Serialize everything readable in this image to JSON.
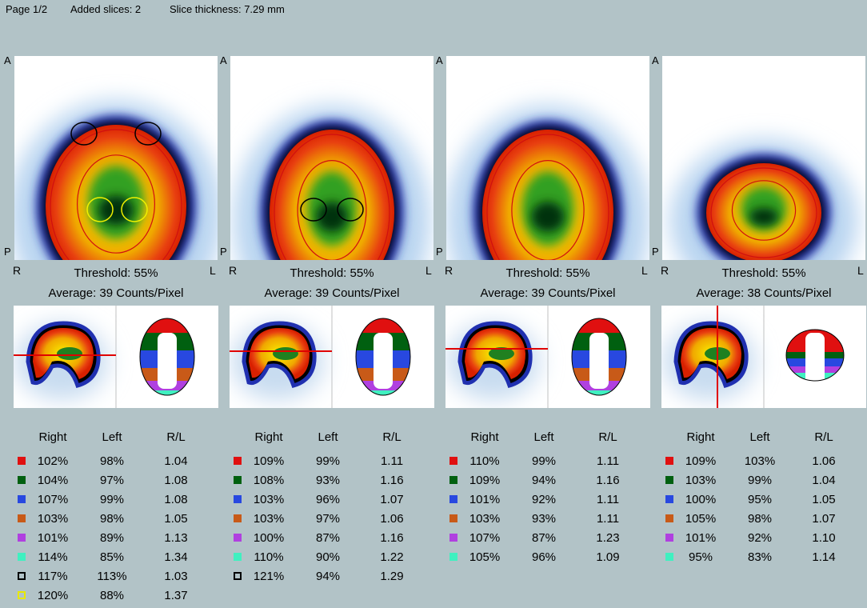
{
  "header": {
    "page": "Page 1/2",
    "added_slices": "Added slices: 2",
    "slice_thickness": "Slice thickness: 7.29 mm"
  },
  "orientation": {
    "anterior": "A",
    "posterior": "P",
    "right": "R",
    "left": "L"
  },
  "columns": [
    "Right",
    "Left",
    "R/L"
  ],
  "panels": [
    {
      "threshold": "Threshold: 55%",
      "average": "Average: 39 Counts/Pixel",
      "rows": [
        {
          "swatch": {
            "color": "#e01010",
            "filled": true
          },
          "cells": [
            "102%",
            "98%",
            "1.04"
          ]
        },
        {
          "swatch": {
            "color": "#006010",
            "filled": true
          },
          "cells": [
            "104%",
            "97%",
            "1.08"
          ]
        },
        {
          "swatch": {
            "color": "#2848e0",
            "filled": true
          },
          "cells": [
            "107%",
            "99%",
            "1.08"
          ]
        },
        {
          "swatch": {
            "color": "#c85a18",
            "filled": true
          },
          "cells": [
            "103%",
            "98%",
            "1.05"
          ]
        },
        {
          "swatch": {
            "color": "#b040e0",
            "filled": true
          },
          "cells": [
            "101%",
            "89%",
            "1.13"
          ]
        },
        {
          "swatch": {
            "color": "#40f0c0",
            "filled": true
          },
          "cells": [
            "114%",
            "85%",
            "1.34"
          ]
        },
        {
          "swatch": {
            "color": "#000000",
            "filled": false
          },
          "cells": [
            "117%",
            "113%",
            "1.03"
          ]
        },
        {
          "swatch": {
            "color": "#e8e800",
            "filled": false
          },
          "cells": [
            "120%",
            "88%",
            "1.37"
          ]
        }
      ]
    },
    {
      "threshold": "Threshold: 55%",
      "average": "Average: 39 Counts/Pixel",
      "rows": [
        {
          "swatch": {
            "color": "#e01010",
            "filled": true
          },
          "cells": [
            "109%",
            "99%",
            "1.11"
          ]
        },
        {
          "swatch": {
            "color": "#006010",
            "filled": true
          },
          "cells": [
            "108%",
            "93%",
            "1.16"
          ]
        },
        {
          "swatch": {
            "color": "#2848e0",
            "filled": true
          },
          "cells": [
            "103%",
            "96%",
            "1.07"
          ]
        },
        {
          "swatch": {
            "color": "#c85a18",
            "filled": true
          },
          "cells": [
            "103%",
            "97%",
            "1.06"
          ]
        },
        {
          "swatch": {
            "color": "#b040e0",
            "filled": true
          },
          "cells": [
            "100%",
            "87%",
            "1.16"
          ]
        },
        {
          "swatch": {
            "color": "#40f0c0",
            "filled": true
          },
          "cells": [
            "110%",
            "90%",
            "1.22"
          ]
        },
        {
          "swatch": {
            "color": "#000000",
            "filled": false
          },
          "cells": [
            "121%",
            "94%",
            "1.29"
          ]
        }
      ]
    },
    {
      "threshold": "Threshold: 55%",
      "average": "Average: 39 Counts/Pixel",
      "rows": [
        {
          "swatch": {
            "color": "#e01010",
            "filled": true
          },
          "cells": [
            "110%",
            "99%",
            "1.11"
          ]
        },
        {
          "swatch": {
            "color": "#006010",
            "filled": true
          },
          "cells": [
            "109%",
            "94%",
            "1.16"
          ]
        },
        {
          "swatch": {
            "color": "#2848e0",
            "filled": true
          },
          "cells": [
            "101%",
            "92%",
            "1.11"
          ]
        },
        {
          "swatch": {
            "color": "#c85a18",
            "filled": true
          },
          "cells": [
            "103%",
            "93%",
            "1.11"
          ]
        },
        {
          "swatch": {
            "color": "#b040e0",
            "filled": true
          },
          "cells": [
            "107%",
            "87%",
            "1.23"
          ]
        },
        {
          "swatch": {
            "color": "#40f0c0",
            "filled": true
          },
          "cells": [
            "105%",
            "96%",
            "1.09"
          ]
        }
      ]
    },
    {
      "threshold": "Threshold: 55%",
      "average": "Average: 38 Counts/Pixel",
      "rows": [
        {
          "swatch": {
            "color": "#e01010",
            "filled": true
          },
          "cells": [
            "109%",
            "103%",
            "1.06"
          ]
        },
        {
          "swatch": {
            "color": "#006010",
            "filled": true
          },
          "cells": [
            "103%",
            "99%",
            "1.04"
          ]
        },
        {
          "swatch": {
            "color": "#2848e0",
            "filled": true
          },
          "cells": [
            "100%",
            "95%",
            "1.05"
          ]
        },
        {
          "swatch": {
            "color": "#c85a18",
            "filled": true
          },
          "cells": [
            "105%",
            "98%",
            "1.07"
          ]
        },
        {
          "swatch": {
            "color": "#b040e0",
            "filled": true
          },
          "cells": [
            "101%",
            "92%",
            "1.10"
          ]
        },
        {
          "swatch": {
            "color": "#40f0c0",
            "filled": true
          },
          "cells": [
            "95%",
            "83%",
            "1.14"
          ]
        }
      ]
    }
  ]
}
